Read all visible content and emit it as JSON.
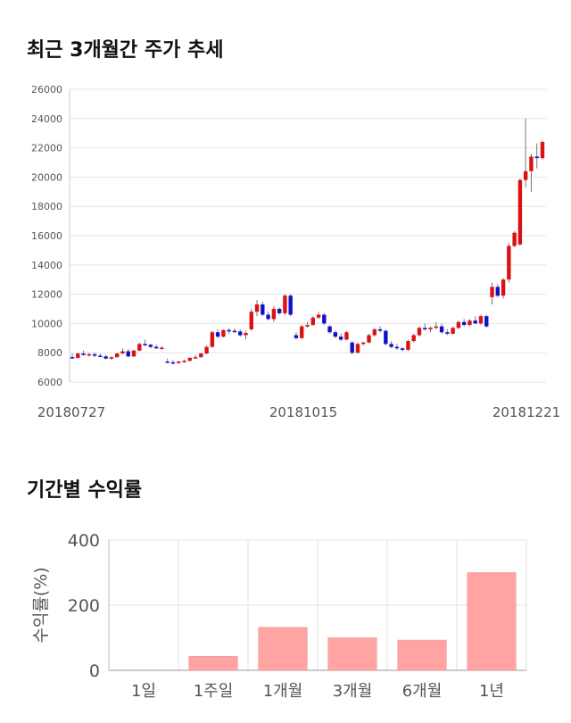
{
  "headings": {
    "price_trend": "최근 3개월간 주가 추세",
    "period_returns": "기간별 수익률"
  },
  "chart_data": [
    {
      "type": "candlestick",
      "xlabel": "",
      "ylabel": "",
      "ylim": [
        6000,
        26000
      ],
      "y_ticks": [
        "26000",
        "24000",
        "22000",
        "20000",
        "18000",
        "16000",
        "14000",
        "12000",
        "10000",
        "8000",
        "6000"
      ],
      "x_tick_labels": [
        "20180727",
        "20181015",
        "20181221"
      ],
      "grid": true,
      "up_color": "#dd1111",
      "down_color": "#1111cc",
      "candles": [
        [
          7700,
          7950,
          7600,
          7650
        ],
        [
          7650,
          8000,
          7600,
          7950
        ],
        [
          7950,
          8150,
          7800,
          7850
        ],
        [
          7850,
          8000,
          7750,
          7900
        ],
        [
          7900,
          8000,
          7700,
          7800
        ],
        [
          7800,
          7950,
          7700,
          7750
        ],
        [
          7750,
          7850,
          7550,
          7600
        ],
        [
          7600,
          7750,
          7500,
          7700
        ],
        [
          7700,
          8000,
          7650,
          7950
        ],
        [
          7950,
          8300,
          7900,
          8100
        ],
        [
          8100,
          8250,
          7700,
          7750
        ],
        [
          7750,
          8200,
          7700,
          8150
        ],
        [
          8150,
          8700,
          8100,
          8600
        ],
        [
          8600,
          8900,
          8450,
          8550
        ],
        [
          8550,
          8600,
          8300,
          8400
        ],
        [
          8400,
          8550,
          8250,
          8300
        ],
        [
          8300,
          8450,
          8200,
          8350
        ],
        [
          7400,
          7600,
          7300,
          7350
        ],
        [
          7350,
          7500,
          7200,
          7300
        ],
        [
          7300,
          7450,
          7250,
          7400
        ],
        [
          7400,
          7550,
          7300,
          7450
        ],
        [
          7450,
          7700,
          7400,
          7650
        ],
        [
          7650,
          7850,
          7600,
          7700
        ],
        [
          7700,
          8000,
          7650,
          7950
        ],
        [
          7950,
          8500,
          7900,
          8400
        ],
        [
          8400,
          9500,
          8350,
          9400
        ],
        [
          9400,
          9600,
          9000,
          9100
        ],
        [
          9100,
          9600,
          9050,
          9550
        ],
        [
          9550,
          9700,
          9300,
          9500
        ],
        [
          9500,
          9650,
          9350,
          9450
        ],
        [
          9450,
          9600,
          9100,
          9200
        ],
        [
          9200,
          9500,
          8900,
          9350
        ],
        [
          9600,
          11000,
          9500,
          10800
        ],
        [
          10800,
          11600,
          10500,
          11300
        ],
        [
          11300,
          11500,
          10500,
          10600
        ],
        [
          10600,
          10800,
          10200,
          10300
        ],
        [
          10300,
          11200,
          10100,
          11000
        ],
        [
          11000,
          11100,
          10600,
          10700
        ],
        [
          10700,
          12000,
          10600,
          11900
        ],
        [
          11900,
          12000,
          10500,
          10600
        ],
        [
          9200,
          9400,
          8900,
          9000
        ],
        [
          9000,
          9900,
          8950,
          9800
        ],
        [
          9800,
          10100,
          9700,
          9900
        ],
        [
          9900,
          10500,
          9850,
          10400
        ],
        [
          10400,
          10800,
          10300,
          10600
        ],
        [
          10600,
          10700,
          9900,
          10000
        ],
        [
          9800,
          9900,
          9300,
          9400
        ],
        [
          9400,
          9500,
          9000,
          9100
        ],
        [
          9100,
          9300,
          8800,
          8900
        ],
        [
          8900,
          9500,
          8850,
          9400
        ],
        [
          8700,
          8800,
          7900,
          8000
        ],
        [
          8000,
          8700,
          7950,
          8600
        ],
        [
          8600,
          8750,
          8500,
          8700
        ],
        [
          8700,
          9300,
          8650,
          9200
        ],
        [
          9200,
          9700,
          9100,
          9600
        ],
        [
          9600,
          9800,
          9400,
          9500
        ],
        [
          9500,
          9600,
          8500,
          8600
        ],
        [
          8600,
          8800,
          8300,
          8400
        ],
        [
          8400,
          8600,
          8200,
          8300
        ],
        [
          8300,
          8400,
          8100,
          8200
        ],
        [
          8200,
          8900,
          8100,
          8800
        ],
        [
          8800,
          9300,
          8700,
          9200
        ],
        [
          9200,
          9800,
          9100,
          9700
        ],
        [
          9700,
          10000,
          9500,
          9600
        ],
        [
          9600,
          9800,
          9400,
          9700
        ],
        [
          9700,
          10100,
          9600,
          9800
        ],
        [
          9800,
          10000,
          9300,
          9400
        ],
        [
          9400,
          9600,
          9200,
          9300
        ],
        [
          9300,
          9800,
          9250,
          9700
        ],
        [
          9700,
          10200,
          9600,
          10100
        ],
        [
          10100,
          10300,
          9800,
          9900
        ],
        [
          9900,
          10300,
          9800,
          10200
        ],
        [
          10200,
          10500,
          9950,
          10000
        ],
        [
          10000,
          10600,
          9900,
          10500
        ],
        [
          10500,
          10600,
          9700,
          9800
        ],
        [
          11800,
          12800,
          11300,
          12500
        ],
        [
          12500,
          12700,
          11800,
          11900
        ],
        [
          11900,
          13100,
          11700,
          13000
        ],
        [
          13000,
          15500,
          12800,
          15300
        ],
        [
          15300,
          16300,
          15200,
          16200
        ],
        [
          15400,
          19900,
          15300,
          19800
        ],
        [
          19800,
          24000,
          19300,
          20400
        ],
        [
          20400,
          21600,
          19000,
          21400
        ],
        [
          21400,
          22300,
          20600,
          21300
        ],
        [
          21300,
          22500,
          21200,
          22400
        ]
      ]
    },
    {
      "type": "bar",
      "categories": [
        "1일",
        "1주일",
        "1개월",
        "3개월",
        "6개월",
        "1년"
      ],
      "values": [
        0,
        43,
        132,
        100,
        93,
        300
      ],
      "title": "",
      "xlabel": "",
      "ylabel": "수익률(%)",
      "ylim": [
        0,
        400
      ],
      "y_ticks": [
        "400",
        "200",
        "0"
      ],
      "bar_color": "#ffa3a3",
      "grid": true
    }
  ]
}
